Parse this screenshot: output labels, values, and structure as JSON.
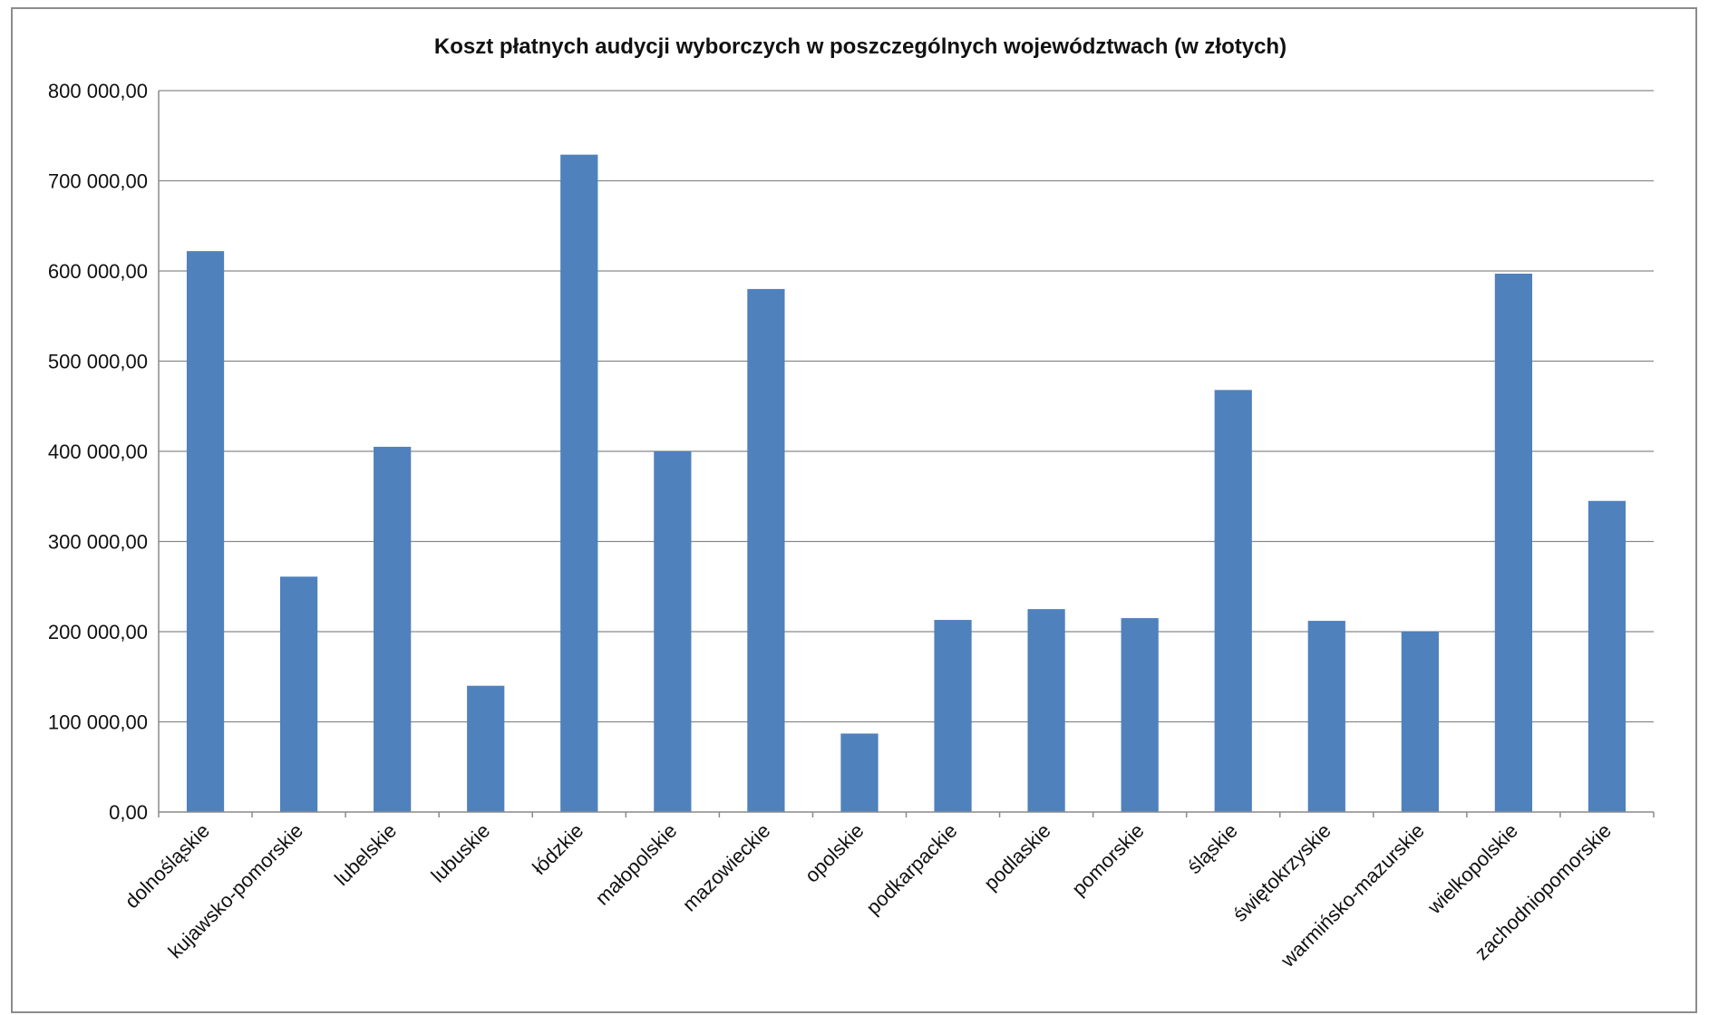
{
  "chart_data": {
    "type": "bar",
    "title": "Koszt płatnych audycji wyborczych w poszczególnych województwach (w złotych)",
    "xlabel": "",
    "ylabel": "",
    "ylim": [
      0,
      800000
    ],
    "yticks": [
      0,
      100000,
      200000,
      300000,
      400000,
      500000,
      600000,
      700000,
      800000
    ],
    "ytick_labels": [
      "0,00",
      "100 000,00",
      "200 000,00",
      "300 000,00",
      "400 000,00",
      "500 000,00",
      "600 000,00",
      "700 000,00",
      "800 000,00"
    ],
    "grid": true,
    "legend": "none",
    "bar_color": "#4f81bd",
    "categories": [
      "dolnośląskie",
      "kujawsko-pomorskie",
      "lubelskie",
      "lubuskie",
      "łódzkie",
      "małopolskie",
      "mazowieckie",
      "opolskie",
      "podkarpackie",
      "podlaskie",
      "pomorskie",
      "śląskie",
      "świętokrzyskie",
      "warmińsko-mazurskie",
      "wielkopolskie",
      "zachodniopomorskie"
    ],
    "values": [
      622000,
      261000,
      405000,
      140000,
      729000,
      400000,
      580000,
      87000,
      213000,
      225000,
      215000,
      468000,
      212000,
      200000,
      597000,
      345000
    ]
  }
}
